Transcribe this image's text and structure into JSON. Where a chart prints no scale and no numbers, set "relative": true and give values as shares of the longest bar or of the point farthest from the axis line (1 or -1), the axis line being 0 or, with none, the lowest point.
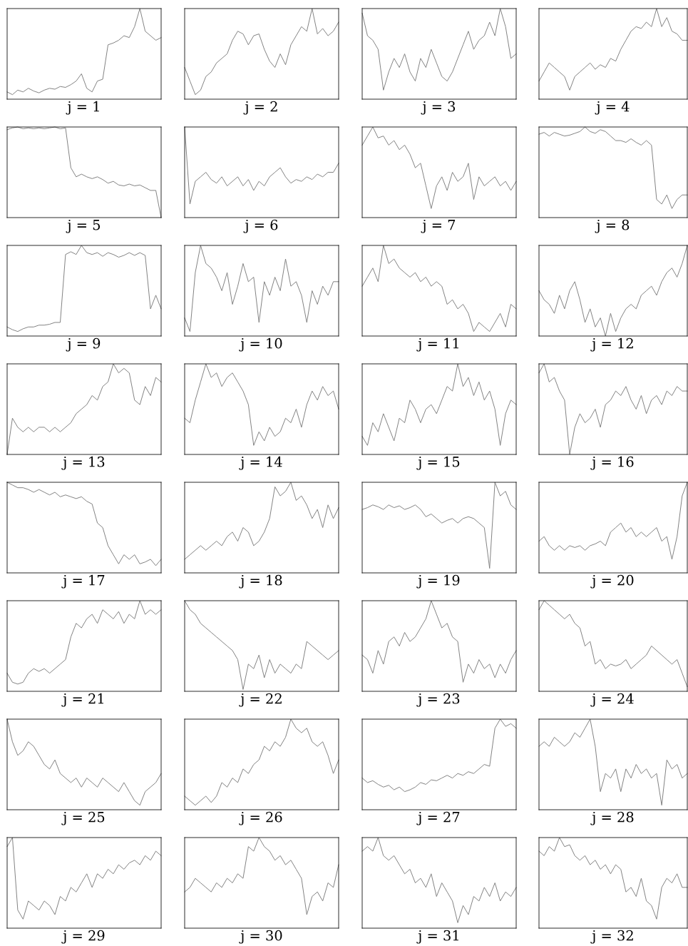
{
  "chart_data": [
    {
      "type": "line",
      "relative": true,
      "tick_labels": false,
      "xlabel": "j = 1",
      "categories": [
        null,
        null,
        null,
        null,
        null,
        null,
        null,
        null,
        null,
        null,
        null,
        null,
        null,
        null,
        null,
        null,
        null,
        null,
        null,
        null,
        null,
        null,
        null,
        null,
        null,
        null,
        null,
        null,
        null,
        null
      ],
      "series": [
        {
          "color": "#7f7f7f",
          "values": [
            0.08,
            0.05,
            0.1,
            0.08,
            0.12,
            0.09,
            0.07,
            0.1,
            0.12,
            0.11,
            0.14,
            0.13,
            0.16,
            0.2,
            0.28,
            0.12,
            0.08,
            0.2,
            0.22,
            0.6,
            0.62,
            0.65,
            0.7,
            0.68,
            0.8,
            1.0,
            0.75,
            0.7,
            0.65,
            0.68
          ]
        }
      ]
    },
    {
      "type": "line",
      "relative": true,
      "tick_labels": false,
      "xlabel": "j = 2",
      "categories": [
        null,
        null,
        null,
        null,
        null,
        null,
        null,
        null,
        null,
        null,
        null,
        null,
        null,
        null,
        null,
        null,
        null,
        null,
        null,
        null,
        null,
        null,
        null,
        null,
        null,
        null,
        null,
        null,
        null,
        null
      ],
      "series": [
        {
          "color": "#7f7f7f",
          "values": [
            0.35,
            0.2,
            0.05,
            0.1,
            0.25,
            0.3,
            0.4,
            0.45,
            0.5,
            0.65,
            0.75,
            0.72,
            0.6,
            0.7,
            0.72,
            0.55,
            0.42,
            0.35,
            0.5,
            0.38,
            0.6,
            0.7,
            0.8,
            0.75,
            1.0,
            0.72,
            0.78,
            0.7,
            0.75,
            0.85
          ]
        }
      ]
    },
    {
      "type": "line",
      "relative": true,
      "tick_labels": false,
      "xlabel": "j = 3",
      "categories": [
        null,
        null,
        null,
        null,
        null,
        null,
        null,
        null,
        null,
        null,
        null,
        null,
        null,
        null,
        null,
        null,
        null,
        null,
        null,
        null,
        null,
        null,
        null,
        null,
        null,
        null,
        null,
        null,
        null,
        null
      ],
      "series": [
        {
          "color": "#7f7f7f",
          "values": [
            0.95,
            0.7,
            0.65,
            0.55,
            0.1,
            0.3,
            0.45,
            0.35,
            0.5,
            0.3,
            0.2,
            0.45,
            0.35,
            0.55,
            0.4,
            0.25,
            0.2,
            0.3,
            0.45,
            0.6,
            0.75,
            0.55,
            0.65,
            0.7,
            0.85,
            0.7,
            1.0,
            0.8,
            0.45,
            0.5
          ]
        }
      ]
    },
    {
      "type": "line",
      "relative": true,
      "tick_labels": false,
      "xlabel": "j = 4",
      "categories": [
        null,
        null,
        null,
        null,
        null,
        null,
        null,
        null,
        null,
        null,
        null,
        null,
        null,
        null,
        null,
        null,
        null,
        null,
        null,
        null,
        null,
        null,
        null,
        null,
        null,
        null,
        null,
        null,
        null,
        null
      ],
      "series": [
        {
          "color": "#7f7f7f",
          "values": [
            0.2,
            0.3,
            0.4,
            0.35,
            0.3,
            0.25,
            0.1,
            0.25,
            0.3,
            0.35,
            0.4,
            0.33,
            0.38,
            0.35,
            0.45,
            0.42,
            0.55,
            0.65,
            0.75,
            0.8,
            0.78,
            0.85,
            0.8,
            1.0,
            0.8,
            0.9,
            0.75,
            0.72,
            0.65,
            0.65
          ]
        }
      ]
    },
    {
      "type": "line",
      "relative": true,
      "tick_labels": false,
      "xlabel": "j = 5",
      "categories": [
        null,
        null,
        null,
        null,
        null,
        null,
        null,
        null,
        null,
        null,
        null,
        null,
        null,
        null,
        null,
        null,
        null,
        null,
        null,
        null,
        null,
        null,
        null,
        null,
        null,
        null,
        null,
        null,
        null,
        null
      ],
      "series": [
        {
          "color": "#7f7f7f",
          "values": [
            0.97,
            0.99,
            1.0,
            0.98,
            0.99,
            0.98,
            0.99,
            0.98,
            0.99,
            1.0,
            0.98,
            0.99,
            0.55,
            0.45,
            0.48,
            0.45,
            0.43,
            0.45,
            0.42,
            0.38,
            0.4,
            0.36,
            0.35,
            0.37,
            0.35,
            0.36,
            0.33,
            0.3,
            0.3,
            0.0
          ]
        }
      ]
    },
    {
      "type": "line",
      "relative": true,
      "tick_labels": false,
      "xlabel": "j = 6",
      "categories": [
        null,
        null,
        null,
        null,
        null,
        null,
        null,
        null,
        null,
        null,
        null,
        null,
        null,
        null,
        null,
        null,
        null,
        null,
        null,
        null,
        null,
        null,
        null,
        null,
        null,
        null,
        null,
        null,
        null,
        null
      ],
      "series": [
        {
          "color": "#7f7f7f",
          "values": [
            1.0,
            0.15,
            0.4,
            0.45,
            0.5,
            0.42,
            0.38,
            0.45,
            0.35,
            0.4,
            0.45,
            0.35,
            0.42,
            0.3,
            0.4,
            0.35,
            0.45,
            0.5,
            0.55,
            0.45,
            0.38,
            0.42,
            0.4,
            0.45,
            0.42,
            0.48,
            0.45,
            0.5,
            0.5,
            0.6
          ]
        }
      ]
    },
    {
      "type": "line",
      "relative": true,
      "tick_labels": false,
      "xlabel": "j = 7",
      "categories": [
        null,
        null,
        null,
        null,
        null,
        null,
        null,
        null,
        null,
        null,
        null,
        null,
        null,
        null,
        null,
        null,
        null,
        null,
        null,
        null,
        null,
        null,
        null,
        null,
        null,
        null,
        null,
        null,
        null,
        null
      ],
      "series": [
        {
          "color": "#7f7f7f",
          "values": [
            0.8,
            0.9,
            1.0,
            0.88,
            0.9,
            0.8,
            0.85,
            0.75,
            0.8,
            0.7,
            0.55,
            0.6,
            0.35,
            0.1,
            0.35,
            0.45,
            0.3,
            0.5,
            0.4,
            0.45,
            0.6,
            0.2,
            0.45,
            0.35,
            0.4,
            0.45,
            0.35,
            0.4,
            0.3,
            0.4
          ]
        }
      ]
    },
    {
      "type": "line",
      "relative": true,
      "tick_labels": false,
      "xlabel": "j = 8",
      "categories": [
        null,
        null,
        null,
        null,
        null,
        null,
        null,
        null,
        null,
        null,
        null,
        null,
        null,
        null,
        null,
        null,
        null,
        null,
        null,
        null,
        null,
        null,
        null,
        null,
        null,
        null,
        null,
        null,
        null,
        null
      ],
      "series": [
        {
          "color": "#7f7f7f",
          "values": [
            0.92,
            0.94,
            0.9,
            0.94,
            0.92,
            0.9,
            0.91,
            0.93,
            0.95,
            1.0,
            0.95,
            0.93,
            0.97,
            0.95,
            0.9,
            0.85,
            0.85,
            0.83,
            0.87,
            0.83,
            0.8,
            0.85,
            0.8,
            0.2,
            0.15,
            0.25,
            0.1,
            0.2,
            0.25,
            0.25
          ]
        }
      ]
    },
    {
      "type": "line",
      "relative": true,
      "tick_labels": false,
      "xlabel": "j = 9",
      "categories": [
        null,
        null,
        null,
        null,
        null,
        null,
        null,
        null,
        null,
        null,
        null,
        null,
        null,
        null,
        null,
        null,
        null,
        null,
        null,
        null,
        null,
        null,
        null,
        null,
        null,
        null,
        null,
        null,
        null,
        null
      ],
      "series": [
        {
          "color": "#7f7f7f",
          "values": [
            0.1,
            0.07,
            0.05,
            0.08,
            0.1,
            0.1,
            0.12,
            0.12,
            0.13,
            0.15,
            0.15,
            0.9,
            0.93,
            0.9,
            1.0,
            0.92,
            0.9,
            0.92,
            0.88,
            0.92,
            0.9,
            0.87,
            0.89,
            0.92,
            0.89,
            0.92,
            0.89,
            0.3,
            0.45,
            0.3
          ]
        }
      ]
    },
    {
      "type": "line",
      "relative": true,
      "tick_labels": false,
      "xlabel": "j = 10",
      "categories": [
        null,
        null,
        null,
        null,
        null,
        null,
        null,
        null,
        null,
        null,
        null,
        null,
        null,
        null,
        null,
        null,
        null,
        null,
        null,
        null,
        null,
        null,
        null,
        null,
        null,
        null,
        null,
        null,
        null,
        null
      ],
      "series": [
        {
          "color": "#7f7f7f",
          "values": [
            0.2,
            0.05,
            0.7,
            1.0,
            0.8,
            0.75,
            0.65,
            0.5,
            0.7,
            0.35,
            0.55,
            0.8,
            0.6,
            0.65,
            0.15,
            0.6,
            0.45,
            0.65,
            0.5,
            0.85,
            0.55,
            0.6,
            0.45,
            0.15,
            0.5,
            0.35,
            0.55,
            0.45,
            0.6,
            0.6
          ]
        }
      ]
    },
    {
      "type": "line",
      "relative": true,
      "tick_labels": false,
      "xlabel": "j = 11",
      "categories": [
        null,
        null,
        null,
        null,
        null,
        null,
        null,
        null,
        null,
        null,
        null,
        null,
        null,
        null,
        null,
        null,
        null,
        null,
        null,
        null,
        null,
        null,
        null,
        null,
        null,
        null,
        null,
        null,
        null,
        null
      ],
      "series": [
        {
          "color": "#7f7f7f",
          "values": [
            0.55,
            0.65,
            0.75,
            0.6,
            1.0,
            0.8,
            0.85,
            0.75,
            0.7,
            0.65,
            0.7,
            0.6,
            0.65,
            0.55,
            0.6,
            0.55,
            0.35,
            0.4,
            0.3,
            0.35,
            0.25,
            0.05,
            0.15,
            0.1,
            0.05,
            0.15,
            0.25,
            0.1,
            0.35,
            0.3
          ]
        }
      ]
    },
    {
      "type": "line",
      "relative": true,
      "tick_labels": false,
      "xlabel": "j = 12",
      "categories": [
        null,
        null,
        null,
        null,
        null,
        null,
        null,
        null,
        null,
        null,
        null,
        null,
        null,
        null,
        null,
        null,
        null,
        null,
        null,
        null,
        null,
        null,
        null,
        null,
        null,
        null,
        null,
        null,
        null,
        null
      ],
      "series": [
        {
          "color": "#7f7f7f",
          "values": [
            0.5,
            0.4,
            0.35,
            0.25,
            0.45,
            0.3,
            0.5,
            0.6,
            0.4,
            0.15,
            0.3,
            0.1,
            0.2,
            0.0,
            0.25,
            0.05,
            0.2,
            0.3,
            0.35,
            0.3,
            0.45,
            0.5,
            0.55,
            0.45,
            0.6,
            0.7,
            0.75,
            0.65,
            0.8,
            1.0
          ]
        }
      ]
    },
    {
      "type": "line",
      "relative": true,
      "tick_labels": false,
      "xlabel": "j = 13",
      "categories": [
        null,
        null,
        null,
        null,
        null,
        null,
        null,
        null,
        null,
        null,
        null,
        null,
        null,
        null,
        null,
        null,
        null,
        null,
        null,
        null,
        null,
        null,
        null,
        null,
        null,
        null,
        null,
        null,
        null,
        null
      ],
      "series": [
        {
          "color": "#7f7f7f",
          "values": [
            0.0,
            0.4,
            0.3,
            0.25,
            0.3,
            0.25,
            0.3,
            0.3,
            0.25,
            0.3,
            0.25,
            0.3,
            0.35,
            0.45,
            0.5,
            0.55,
            0.65,
            0.6,
            0.75,
            0.8,
            1.0,
            0.9,
            0.95,
            0.9,
            0.6,
            0.55,
            0.75,
            0.65,
            0.85,
            0.8
          ]
        }
      ]
    },
    {
      "type": "line",
      "relative": true,
      "tick_labels": false,
      "xlabel": "j = 14",
      "categories": [
        null,
        null,
        null,
        null,
        null,
        null,
        null,
        null,
        null,
        null,
        null,
        null,
        null,
        null,
        null,
        null,
        null,
        null,
        null,
        null,
        null,
        null,
        null,
        null,
        null,
        null,
        null,
        null,
        null,
        null
      ],
      "series": [
        {
          "color": "#7f7f7f",
          "values": [
            0.4,
            0.35,
            0.6,
            0.8,
            1.0,
            0.85,
            0.9,
            0.75,
            0.85,
            0.9,
            0.8,
            0.7,
            0.55,
            0.1,
            0.25,
            0.15,
            0.3,
            0.2,
            0.25,
            0.4,
            0.35,
            0.5,
            0.3,
            0.55,
            0.7,
            0.6,
            0.75,
            0.65,
            0.7,
            0.5
          ]
        }
      ]
    },
    {
      "type": "line",
      "relative": true,
      "tick_labels": false,
      "xlabel": "j = 15",
      "categories": [
        null,
        null,
        null,
        null,
        null,
        null,
        null,
        null,
        null,
        null,
        null,
        null,
        null,
        null,
        null,
        null,
        null,
        null,
        null,
        null,
        null,
        null,
        null,
        null,
        null,
        null,
        null,
        null,
        null,
        null
      ],
      "series": [
        {
          "color": "#7f7f7f",
          "values": [
            0.2,
            0.1,
            0.35,
            0.25,
            0.45,
            0.3,
            0.15,
            0.4,
            0.35,
            0.6,
            0.5,
            0.35,
            0.5,
            0.55,
            0.45,
            0.6,
            0.75,
            0.7,
            1.0,
            0.75,
            0.85,
            0.65,
            0.8,
            0.6,
            0.7,
            0.5,
            0.1,
            0.45,
            0.6,
            0.55
          ]
        }
      ]
    },
    {
      "type": "line",
      "relative": true,
      "tick_labels": false,
      "xlabel": "j = 16",
      "categories": [
        null,
        null,
        null,
        null,
        null,
        null,
        null,
        null,
        null,
        null,
        null,
        null,
        null,
        null,
        null,
        null,
        null,
        null,
        null,
        null,
        null,
        null,
        null,
        null,
        null,
        null,
        null,
        null,
        null,
        null
      ],
      "series": [
        {
          "color": "#7f7f7f",
          "values": [
            0.9,
            1.0,
            0.8,
            0.85,
            0.7,
            0.6,
            0.0,
            0.3,
            0.45,
            0.35,
            0.4,
            0.5,
            0.3,
            0.55,
            0.6,
            0.7,
            0.65,
            0.75,
            0.6,
            0.5,
            0.65,
            0.45,
            0.6,
            0.65,
            0.55,
            0.7,
            0.65,
            0.75,
            0.7,
            0.7
          ]
        }
      ]
    },
    {
      "type": "line",
      "relative": true,
      "tick_labels": false,
      "xlabel": "j = 17",
      "categories": [
        null,
        null,
        null,
        null,
        null,
        null,
        null,
        null,
        null,
        null,
        null,
        null,
        null,
        null,
        null,
        null,
        null,
        null,
        null,
        null,
        null,
        null,
        null,
        null,
        null,
        null,
        null,
        null,
        null,
        null
      ],
      "series": [
        {
          "color": "#7f7f7f",
          "values": [
            1.0,
            0.97,
            0.94,
            0.94,
            0.92,
            0.89,
            0.92,
            0.89,
            0.86,
            0.89,
            0.84,
            0.86,
            0.84,
            0.82,
            0.84,
            0.79,
            0.76,
            0.55,
            0.5,
            0.3,
            0.2,
            0.1,
            0.2,
            0.15,
            0.2,
            0.1,
            0.12,
            0.15,
            0.08,
            0.15
          ]
        }
      ]
    },
    {
      "type": "line",
      "relative": true,
      "tick_labels": false,
      "xlabel": "j = 18",
      "categories": [
        null,
        null,
        null,
        null,
        null,
        null,
        null,
        null,
        null,
        null,
        null,
        null,
        null,
        null,
        null,
        null,
        null,
        null,
        null,
        null,
        null,
        null,
        null,
        null,
        null,
        null,
        null,
        null,
        null,
        null
      ],
      "series": [
        {
          "color": "#7f7f7f",
          "values": [
            0.15,
            0.2,
            0.25,
            0.3,
            0.25,
            0.3,
            0.35,
            0.3,
            0.4,
            0.45,
            0.35,
            0.5,
            0.45,
            0.3,
            0.35,
            0.45,
            0.6,
            0.95,
            0.85,
            0.9,
            1.0,
            0.8,
            0.85,
            0.75,
            0.6,
            0.7,
            0.5,
            0.75,
            0.6,
            0.72
          ]
        }
      ]
    },
    {
      "type": "line",
      "relative": true,
      "tick_labels": false,
      "xlabel": "j = 19",
      "categories": [
        null,
        null,
        null,
        null,
        null,
        null,
        null,
        null,
        null,
        null,
        null,
        null,
        null,
        null,
        null,
        null,
        null,
        null,
        null,
        null,
        null,
        null,
        null,
        null,
        null,
        null,
        null,
        null,
        null,
        null
      ],
      "series": [
        {
          "color": "#7f7f7f",
          "values": [
            0.7,
            0.72,
            0.75,
            0.73,
            0.7,
            0.75,
            0.72,
            0.74,
            0.7,
            0.72,
            0.75,
            0.7,
            0.62,
            0.65,
            0.6,
            0.55,
            0.58,
            0.6,
            0.55,
            0.6,
            0.62,
            0.6,
            0.55,
            0.5,
            0.05,
            1.0,
            0.85,
            0.9,
            0.75,
            0.7
          ]
        }
      ]
    },
    {
      "type": "line",
      "relative": true,
      "tick_labels": false,
      "xlabel": "j = 20",
      "categories": [
        null,
        null,
        null,
        null,
        null,
        null,
        null,
        null,
        null,
        null,
        null,
        null,
        null,
        null,
        null,
        null,
        null,
        null,
        null,
        null,
        null,
        null,
        null,
        null,
        null,
        null,
        null,
        null,
        null,
        null
      ],
      "series": [
        {
          "color": "#7f7f7f",
          "values": [
            0.35,
            0.4,
            0.3,
            0.25,
            0.3,
            0.25,
            0.3,
            0.28,
            0.3,
            0.25,
            0.3,
            0.32,
            0.35,
            0.3,
            0.45,
            0.5,
            0.55,
            0.45,
            0.5,
            0.4,
            0.45,
            0.4,
            0.45,
            0.5,
            0.35,
            0.4,
            0.15,
            0.4,
            0.85,
            1.0
          ]
        }
      ]
    },
    {
      "type": "line",
      "relative": true,
      "tick_labels": false,
      "xlabel": "j = 21",
      "categories": [
        null,
        null,
        null,
        null,
        null,
        null,
        null,
        null,
        null,
        null,
        null,
        null,
        null,
        null,
        null,
        null,
        null,
        null,
        null,
        null,
        null,
        null,
        null,
        null,
        null,
        null,
        null,
        null,
        null,
        null
      ],
      "series": [
        {
          "color": "#7f7f7f",
          "values": [
            0.2,
            0.1,
            0.08,
            0.1,
            0.2,
            0.25,
            0.22,
            0.25,
            0.2,
            0.25,
            0.3,
            0.35,
            0.6,
            0.75,
            0.7,
            0.8,
            0.85,
            0.75,
            0.9,
            0.85,
            0.8,
            0.88,
            0.75,
            0.85,
            0.8,
            1.0,
            0.85,
            0.9,
            0.85,
            0.9
          ]
        }
      ]
    },
    {
      "type": "line",
      "relative": true,
      "tick_labels": false,
      "xlabel": "j = 22",
      "categories": [
        null,
        null,
        null,
        null,
        null,
        null,
        null,
        null,
        null,
        null,
        null,
        null,
        null,
        null,
        null,
        null,
        null,
        null,
        null,
        null,
        null,
        null,
        null,
        null,
        null,
        null,
        null,
        null,
        null,
        null
      ],
      "series": [
        {
          "color": "#7f7f7f",
          "values": [
            1.0,
            0.9,
            0.85,
            0.75,
            0.7,
            0.65,
            0.6,
            0.55,
            0.5,
            0.45,
            0.35,
            0.02,
            0.3,
            0.25,
            0.4,
            0.15,
            0.35,
            0.2,
            0.3,
            0.25,
            0.2,
            0.3,
            0.25,
            0.55,
            0.5,
            0.45,
            0.4,
            0.35,
            0.4,
            0.45
          ]
        }
      ]
    },
    {
      "type": "line",
      "relative": true,
      "tick_labels": false,
      "xlabel": "j = 23",
      "categories": [
        null,
        null,
        null,
        null,
        null,
        null,
        null,
        null,
        null,
        null,
        null,
        null,
        null,
        null,
        null,
        null,
        null,
        null,
        null,
        null,
        null,
        null,
        null,
        null,
        null,
        null,
        null,
        null,
        null,
        null
      ],
      "series": [
        {
          "color": "#7f7f7f",
          "values": [
            0.4,
            0.35,
            0.2,
            0.45,
            0.3,
            0.55,
            0.6,
            0.5,
            0.65,
            0.55,
            0.6,
            0.7,
            0.8,
            1.0,
            0.85,
            0.7,
            0.75,
            0.6,
            0.55,
            0.1,
            0.3,
            0.2,
            0.35,
            0.25,
            0.3,
            0.15,
            0.3,
            0.2,
            0.35,
            0.45
          ]
        }
      ]
    },
    {
      "type": "line",
      "relative": true,
      "tick_labels": false,
      "xlabel": "j = 24",
      "categories": [
        null,
        null,
        null,
        null,
        null,
        null,
        null,
        null,
        null,
        null,
        null,
        null,
        null,
        null,
        null,
        null,
        null,
        null,
        null,
        null,
        null,
        null,
        null,
        null,
        null,
        null,
        null,
        null,
        null,
        null
      ],
      "series": [
        {
          "color": "#7f7f7f",
          "values": [
            0.9,
            1.0,
            0.95,
            0.9,
            0.85,
            0.8,
            0.85,
            0.75,
            0.7,
            0.5,
            0.55,
            0.3,
            0.35,
            0.25,
            0.3,
            0.28,
            0.3,
            0.35,
            0.25,
            0.3,
            0.35,
            0.4,
            0.5,
            0.45,
            0.4,
            0.35,
            0.3,
            0.35,
            0.2,
            0.05
          ]
        }
      ]
    },
    {
      "type": "line",
      "relative": true,
      "tick_labels": false,
      "xlabel": "j = 25",
      "categories": [
        null,
        null,
        null,
        null,
        null,
        null,
        null,
        null,
        null,
        null,
        null,
        null,
        null,
        null,
        null,
        null,
        null,
        null,
        null,
        null,
        null,
        null,
        null,
        null,
        null,
        null,
        null,
        null,
        null,
        null
      ],
      "series": [
        {
          "color": "#7f7f7f",
          "values": [
            1.0,
            0.75,
            0.6,
            0.65,
            0.75,
            0.7,
            0.6,
            0.5,
            0.45,
            0.55,
            0.4,
            0.35,
            0.3,
            0.35,
            0.25,
            0.35,
            0.3,
            0.25,
            0.35,
            0.3,
            0.25,
            0.2,
            0.3,
            0.2,
            0.1,
            0.05,
            0.2,
            0.25,
            0.3,
            0.4
          ]
        }
      ]
    },
    {
      "type": "line",
      "relative": true,
      "tick_labels": false,
      "xlabel": "j = 26",
      "categories": [
        null,
        null,
        null,
        null,
        null,
        null,
        null,
        null,
        null,
        null,
        null,
        null,
        null,
        null,
        null,
        null,
        null,
        null,
        null,
        null,
        null,
        null,
        null,
        null,
        null,
        null,
        null,
        null,
        null,
        null
      ],
      "series": [
        {
          "color": "#7f7f7f",
          "values": [
            0.15,
            0.1,
            0.05,
            0.1,
            0.15,
            0.08,
            0.15,
            0.3,
            0.25,
            0.35,
            0.3,
            0.45,
            0.4,
            0.5,
            0.55,
            0.7,
            0.65,
            0.75,
            0.7,
            0.8,
            1.0,
            0.9,
            0.85,
            0.9,
            0.75,
            0.7,
            0.75,
            0.6,
            0.4,
            0.55
          ]
        }
      ]
    },
    {
      "type": "line",
      "relative": true,
      "tick_labels": false,
      "xlabel": "j = 27",
      "categories": [
        null,
        null,
        null,
        null,
        null,
        null,
        null,
        null,
        null,
        null,
        null,
        null,
        null,
        null,
        null,
        null,
        null,
        null,
        null,
        null,
        null,
        null,
        null,
        null,
        null,
        null,
        null,
        null,
        null,
        null
      ],
      "series": [
        {
          "color": "#7f7f7f",
          "values": [
            0.35,
            0.3,
            0.32,
            0.28,
            0.25,
            0.27,
            0.22,
            0.25,
            0.2,
            0.22,
            0.25,
            0.3,
            0.28,
            0.33,
            0.32,
            0.35,
            0.38,
            0.35,
            0.4,
            0.38,
            0.42,
            0.4,
            0.45,
            0.5,
            0.48,
            0.9,
            1.0,
            0.92,
            0.95,
            0.9
          ]
        }
      ]
    },
    {
      "type": "line",
      "relative": true,
      "tick_labels": false,
      "xlabel": "j = 28",
      "categories": [
        null,
        null,
        null,
        null,
        null,
        null,
        null,
        null,
        null,
        null,
        null,
        null,
        null,
        null,
        null,
        null,
        null,
        null,
        null,
        null,
        null,
        null,
        null,
        null,
        null,
        null,
        null,
        null,
        null,
        null
      ],
      "series": [
        {
          "color": "#7f7f7f",
          "values": [
            0.7,
            0.75,
            0.7,
            0.8,
            0.75,
            0.7,
            0.75,
            0.85,
            0.8,
            0.9,
            1.0,
            0.7,
            0.2,
            0.4,
            0.35,
            0.45,
            0.2,
            0.45,
            0.35,
            0.5,
            0.4,
            0.45,
            0.35,
            0.4,
            0.05,
            0.55,
            0.45,
            0.5,
            0.35,
            0.4
          ]
        }
      ]
    },
    {
      "type": "line",
      "relative": true,
      "tick_labels": false,
      "xlabel": "j = 29",
      "categories": [
        null,
        null,
        null,
        null,
        null,
        null,
        null,
        null,
        null,
        null,
        null,
        null,
        null,
        null,
        null,
        null,
        null,
        null,
        null,
        null,
        null,
        null,
        null,
        null,
        null,
        null,
        null,
        null,
        null,
        null
      ],
      "series": [
        {
          "color": "#7f7f7f",
          "values": [
            0.9,
            1.0,
            0.2,
            0.1,
            0.3,
            0.25,
            0.2,
            0.3,
            0.25,
            0.15,
            0.35,
            0.3,
            0.45,
            0.4,
            0.5,
            0.6,
            0.45,
            0.6,
            0.55,
            0.65,
            0.6,
            0.7,
            0.65,
            0.72,
            0.75,
            0.7,
            0.8,
            0.75,
            0.85,
            0.8
          ]
        }
      ]
    },
    {
      "type": "line",
      "relative": true,
      "tick_labels": false,
      "xlabel": "j = 30",
      "categories": [
        null,
        null,
        null,
        null,
        null,
        null,
        null,
        null,
        null,
        null,
        null,
        null,
        null,
        null,
        null,
        null,
        null,
        null,
        null,
        null,
        null,
        null,
        null,
        null,
        null,
        null,
        null,
        null,
        null,
        null
      ],
      "series": [
        {
          "color": "#7f7f7f",
          "values": [
            0.4,
            0.45,
            0.55,
            0.5,
            0.45,
            0.4,
            0.5,
            0.45,
            0.55,
            0.5,
            0.6,
            0.55,
            0.9,
            0.85,
            1.0,
            0.9,
            0.85,
            0.75,
            0.8,
            0.7,
            0.75,
            0.65,
            0.55,
            0.15,
            0.35,
            0.4,
            0.3,
            0.5,
            0.45,
            0.7
          ]
        }
      ]
    },
    {
      "type": "line",
      "relative": true,
      "tick_labels": false,
      "xlabel": "j = 31",
      "categories": [
        null,
        null,
        null,
        null,
        null,
        null,
        null,
        null,
        null,
        null,
        null,
        null,
        null,
        null,
        null,
        null,
        null,
        null,
        null,
        null,
        null,
        null,
        null,
        null,
        null,
        null,
        null,
        null,
        null,
        null
      ],
      "series": [
        {
          "color": "#7f7f7f",
          "values": [
            0.85,
            0.9,
            0.85,
            1.0,
            0.8,
            0.75,
            0.8,
            0.7,
            0.6,
            0.65,
            0.5,
            0.55,
            0.45,
            0.6,
            0.35,
            0.5,
            0.4,
            0.3,
            0.06,
            0.25,
            0.15,
            0.35,
            0.3,
            0.45,
            0.35,
            0.5,
            0.3,
            0.4,
            0.35,
            0.45
          ]
        }
      ]
    },
    {
      "type": "line",
      "relative": true,
      "tick_labels": false,
      "xlabel": "j = 32",
      "categories": [
        null,
        null,
        null,
        null,
        null,
        null,
        null,
        null,
        null,
        null,
        null,
        null,
        null,
        null,
        null,
        null,
        null,
        null,
        null,
        null,
        null,
        null,
        null,
        null,
        null,
        null,
        null,
        null,
        null,
        null
      ],
      "series": [
        {
          "color": "#7f7f7f",
          "values": [
            0.85,
            0.8,
            0.9,
            0.85,
            1.0,
            0.9,
            0.92,
            0.8,
            0.75,
            0.8,
            0.7,
            0.75,
            0.65,
            0.7,
            0.6,
            0.7,
            0.65,
            0.4,
            0.45,
            0.35,
            0.55,
            0.3,
            0.25,
            0.1,
            0.45,
            0.55,
            0.5,
            0.6,
            0.45,
            0.45
          ]
        }
      ]
    }
  ]
}
